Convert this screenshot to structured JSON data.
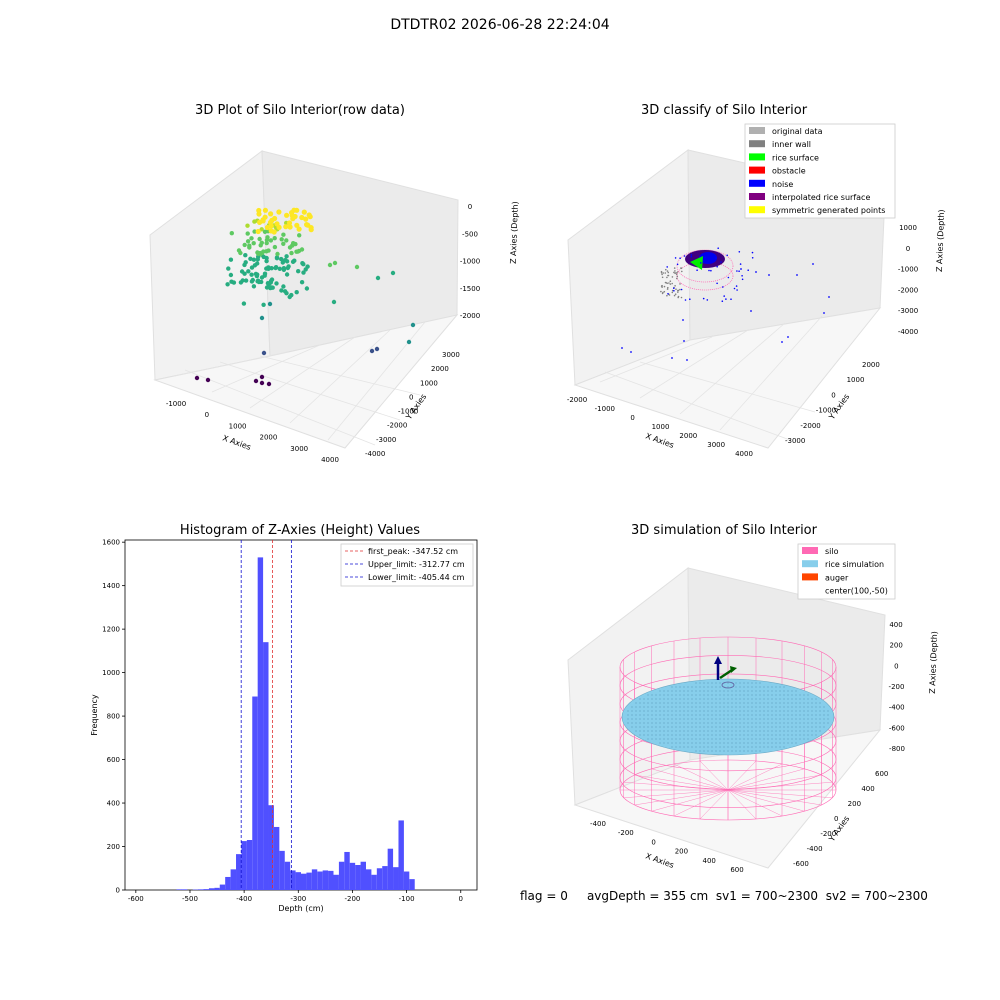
{
  "suptitle": "DTDTR02 2026-06-28 22:24:04",
  "panels": {
    "p1": {
      "title": "3D Plot of Silo Interior(row data)"
    },
    "p2": {
      "title": "3D classify of Silo Interior"
    },
    "p3": {
      "title": "Histogram of Z-Axies (Height) Values"
    },
    "p4": {
      "title": "3D simulation of Silo Interior"
    }
  },
  "status": {
    "flag": "flag = 0",
    "avg_depth": "avgDepth = 355 cm",
    "sv1": "sv1 = 700~2300",
    "sv2": "sv2 = 700~2300"
  },
  "colors": {
    "hist_bar": "#5050ff",
    "first_peak": "#e03030",
    "limits": "#1010d0",
    "silo": "#ff69b4",
    "rice": "#87ceeb",
    "auger": "#ff4500"
  },
  "chart_data": [
    {
      "type": "scatter",
      "subtype": "3d",
      "title": "3D Plot of Silo Interior(row data)",
      "xlabel": "X Axies",
      "ylabel": "Y Axies",
      "zlabel": "Z Axies (Depth)",
      "x_ticks": [
        "-1000",
        "0",
        "1000",
        "2000",
        "3000",
        "4000"
      ],
      "y_ticks": [
        "-4000",
        "-3000",
        "-2000",
        "-1000",
        "0",
        "1000",
        "2000",
        "3000"
      ],
      "z_ticks": [
        "0",
        "-500",
        "-1000",
        "-1500",
        "-2000"
      ],
      "colormap": "viridis (by depth)",
      "points_approx": [
        {
          "x": 0,
          "y": 0,
          "z": -300
        },
        {
          "x": 200,
          "y": 100,
          "z": -350
        },
        {
          "x": 3300,
          "y": 1000,
          "z": -1300
        },
        {
          "x": 3400,
          "y": -2000,
          "z": -2000
        },
        {
          "x": -1000,
          "y": -3500,
          "z": -2300
        },
        {
          "x": 500,
          "y": -2500,
          "z": -2200
        }
      ]
    },
    {
      "type": "scatter",
      "subtype": "3d",
      "title": "3D classify of Silo Interior",
      "xlabel": "X Axies",
      "ylabel": "Y Axies",
      "zlabel": "Z Axies (Depth)",
      "x_ticks": [
        "-2000",
        "-1000",
        "0",
        "1000",
        "2000",
        "3000",
        "4000"
      ],
      "y_ticks": [
        "-3000",
        "-2000",
        "-1000",
        "0",
        "1000",
        "2000"
      ],
      "z_ticks": [
        "1000",
        "0",
        "-1000",
        "-2000",
        "-3000",
        "-4000"
      ],
      "z_ticks_partial": [
        "000"
      ],
      "legend": [
        {
          "label": "original data",
          "color": "#b0b0b0"
        },
        {
          "label": "inner wall",
          "color": "#808080"
        },
        {
          "label": "rice surface",
          "color": "#00ff00"
        },
        {
          "label": "obstacle",
          "color": "#ff0000"
        },
        {
          "label": "noise",
          "color": "#0000ff"
        },
        {
          "label": "interpolated rice surface",
          "color": "#800080"
        },
        {
          "label": "symmetric generated points",
          "color": "#ffff00"
        }
      ],
      "legend_position": "top-right"
    },
    {
      "type": "bar",
      "subtype": "histogram",
      "title": "Histogram of Z-Axies (Height) Values",
      "xlabel": "Depth (cm)",
      "ylabel": "Frequency",
      "xlim": [
        -620,
        30
      ],
      "ylim": [
        0,
        1610
      ],
      "x_ticks": [
        -600,
        -500,
        -400,
        -300,
        -200,
        -100,
        0
      ],
      "y_ticks": [
        0,
        200,
        400,
        600,
        800,
        1000,
        1200,
        1400,
        1600
      ],
      "bin_start": -525,
      "bin_width": 10,
      "values": [
        3,
        3,
        0,
        2,
        3,
        4,
        8,
        10,
        25,
        60,
        95,
        165,
        225,
        230,
        890,
        1530,
        1140,
        390,
        290,
        180,
        130,
        90,
        82,
        75,
        80,
        95,
        85,
        90,
        88,
        70,
        130,
        175,
        125,
        115,
        130,
        95,
        70,
        100,
        110,
        190,
        105,
        320,
        85,
        50
      ],
      "lines": [
        {
          "label": "first_peak: -347.52 cm",
          "x": -347.52,
          "style": "dashed",
          "color": "#e03030"
        },
        {
          "label": "Upper_limit: -312.77 cm",
          "x": -312.77,
          "style": "dashed",
          "color": "#1010d0"
        },
        {
          "label": "Lower_limit: -405.44 cm",
          "x": -405.44,
          "style": "dashed",
          "color": "#1010d0"
        }
      ],
      "legend_position": "top-right"
    },
    {
      "type": "scatter",
      "subtype": "3d-simulation",
      "title": "3D simulation of Silo Interior",
      "xlabel": "X Axies",
      "ylabel": "Y Axies",
      "zlabel": "Z Axies (Depth)",
      "x_ticks": [
        "-400",
        "-200",
        "0",
        "200",
        "400",
        "600"
      ],
      "y_ticks": [
        "-600",
        "-400",
        "-200",
        "0",
        "200",
        "400",
        "600"
      ],
      "z_ticks": [
        "400",
        "200",
        "0",
        "-200",
        "-400",
        "-600",
        "-800"
      ],
      "legend": [
        {
          "label": "silo",
          "color": "#ff69b4"
        },
        {
          "label": "rice simulation",
          "color": "#87ceeb"
        },
        {
          "label": "auger",
          "color": "#ff4500"
        },
        {
          "label": "center(100,-50)",
          "color": ""
        }
      ],
      "legend_position": "top-right"
    }
  ]
}
